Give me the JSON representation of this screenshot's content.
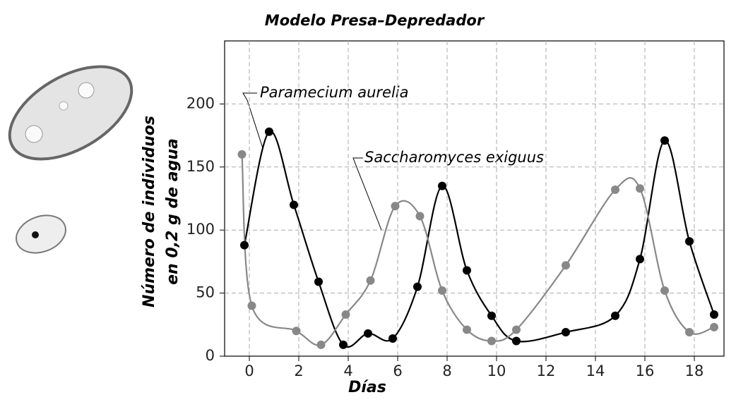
{
  "chart_data": {
    "type": "line",
    "title": "Modelo Presa–Depredador",
    "xlabel": "Días",
    "ylabel": [
      "Número de individuos",
      "en 0,2 g de agua"
    ],
    "xlim": [
      -1,
      19.2
    ],
    "ylim": [
      0,
      250
    ],
    "xticks": [
      0,
      2,
      4,
      6,
      8,
      10,
      12,
      14,
      16,
      18
    ],
    "yticks": [
      0,
      50,
      100,
      150,
      200
    ],
    "grid": true,
    "series": [
      {
        "name": "Paramecium aurelia",
        "color": "#000000",
        "x": [
          -0.2,
          0.8,
          1.8,
          2.8,
          3.8,
          4.8,
          5.8,
          6.8,
          7.8,
          8.8,
          9.8,
          10.8,
          12.8,
          14.8,
          15.8,
          16.8,
          17.8,
          18.8
        ],
        "values": [
          88,
          178,
          120,
          59,
          9,
          18,
          14,
          55,
          135,
          68,
          32,
          12,
          19,
          32,
          77,
          171,
          91,
          33
        ]
      },
      {
        "name": "Saccharomyces exiguus",
        "color": "#888888",
        "x": [
          -0.3,
          0.1,
          1.9,
          2.9,
          3.9,
          4.9,
          5.9,
          6.9,
          7.8,
          8.8,
          9.8,
          10.8,
          12.8,
          14.8,
          15.8,
          16.8,
          17.8,
          18.8
        ],
        "values": [
          160,
          40,
          20,
          9,
          33,
          60,
          119,
          111,
          52,
          21,
          12,
          21,
          72,
          132,
          133,
          52,
          19,
          23
        ]
      }
    ]
  }
}
